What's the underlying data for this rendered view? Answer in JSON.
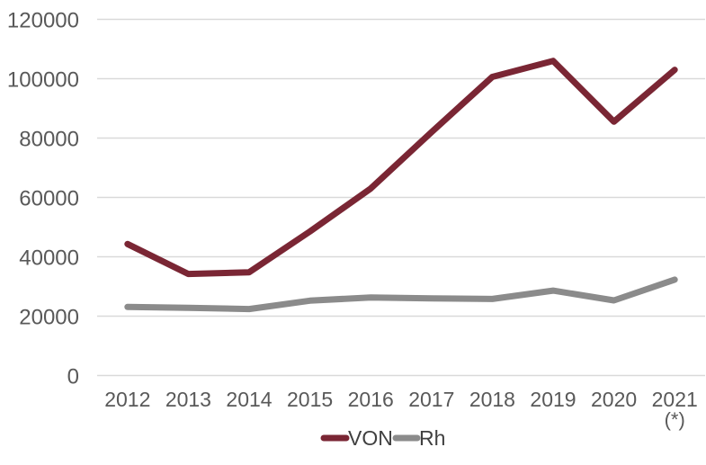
{
  "chart_data": {
    "type": "line",
    "title": "",
    "xlabel": "",
    "ylabel": "",
    "categories": [
      "2012",
      "2013",
      "2014",
      "2015",
      "2016",
      "2017",
      "2018",
      "2019",
      "2020",
      "2021"
    ],
    "category_footnote": {
      "index": 9,
      "text": "(*)"
    },
    "ylim": [
      0,
      120000
    ],
    "ytick_step": 20000,
    "y_tick_labels": [
      "0",
      "20000",
      "40000",
      "60000",
      "80000",
      "100000",
      "120000"
    ],
    "grid": true,
    "legend_position": "bottom",
    "series": [
      {
        "name": "VON",
        "color": "#7A2634",
        "values": [
          44300,
          34200,
          34800,
          48500,
          63000,
          82000,
          100600,
          106000,
          85500,
          103000
        ]
      },
      {
        "name": "Rh",
        "color": "#8B8B8B",
        "values": [
          23100,
          22800,
          22400,
          25200,
          26300,
          26000,
          25800,
          28600,
          25300,
          32300
        ]
      }
    ],
    "colors": {
      "gridline": "#D9D9D9",
      "tick_label": "#595959",
      "legend_text": "#404040",
      "background": "#FFFFFF"
    }
  }
}
